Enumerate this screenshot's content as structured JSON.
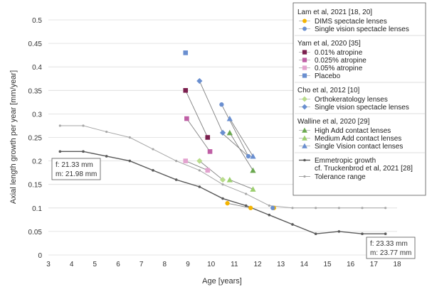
{
  "chart_data": {
    "type": "line",
    "xlabel": "Age [years]",
    "ylabel": "Axial length growth per year [mm/year]",
    "xlim": [
      3,
      18
    ],
    "ylim": [
      0,
      0.5
    ],
    "xticks": [
      3,
      4,
      5,
      6,
      7,
      8,
      9,
      10,
      11,
      12,
      13,
      14,
      15,
      16,
      17,
      18
    ],
    "yticks": [
      0,
      0.05,
      0.1,
      0.15,
      0.2,
      0.25,
      0.3,
      0.35,
      0.4,
      0.45,
      0.5
    ],
    "ytick_labels": [
      "0",
      "0.05",
      "0.1",
      "0.15",
      "0.2",
      "0.25",
      "0.3",
      "0.35",
      "0.4",
      "0.45",
      "0.5"
    ],
    "grid": "horizontal",
    "emmetropic": {
      "name": "Emmetropic growth",
      "name2": "cf. Truckenbrod et al, 2021 [28]",
      "color": "#595959",
      "x": [
        3.5,
        4.5,
        5.5,
        6.5,
        7.5,
        8.5,
        9.5,
        10.5,
        11.5,
        12.5,
        13.5,
        14.5,
        15.5,
        16.5,
        17.5
      ],
      "y": [
        0.22,
        0.22,
        0.21,
        0.2,
        0.18,
        0.16,
        0.145,
        0.12,
        0.105,
        0.085,
        0.065,
        0.045,
        0.05,
        0.045,
        0.045
      ]
    },
    "tolerance": {
      "name": "Tolerance range",
      "color": "#a6a6a6",
      "x": [
        3.5,
        4.5,
        5.5,
        6.5,
        7.5,
        8.5,
        9.5,
        10.5,
        11.5,
        12.5,
        13.5,
        14.5,
        15.5,
        16.5,
        17.5
      ],
      "y": [
        0.275,
        0.275,
        0.262,
        0.25,
        0.225,
        0.2,
        0.18,
        0.15,
        0.13,
        0.105,
        0.1,
        0.1,
        0.1,
        0.1,
        0.1
      ]
    },
    "studies": [
      {
        "title": "Lam et al, 2021 [18, 20]",
        "series": [
          {
            "name": "DIMS spectacle lenses",
            "marker": "circle",
            "color": "#f4b400",
            "x": [
              10.7,
              11.7,
              12.7
            ],
            "y": [
              0.11,
              0.1,
              0.1
            ]
          },
          {
            "name": "Single vision spectacle lenses",
            "marker": "circle",
            "color": "#6a8fd0",
            "x": [
              10.45,
              11.6,
              12.65
            ],
            "y": [
              0.32,
              0.21,
              0.1
            ]
          }
        ]
      },
      {
        "title": "Yam et al, 2020 [35]",
        "series": [
          {
            "name": "0.01% atropine",
            "marker": "square",
            "color": "#7b1f4e",
            "x": [
              8.9,
              9.85
            ],
            "y": [
              0.35,
              0.25
            ]
          },
          {
            "name": "0.025% atropine",
            "marker": "square",
            "color": "#bf5fa5",
            "x": [
              8.95,
              9.95
            ],
            "y": [
              0.29,
              0.22
            ]
          },
          {
            "name": "0.05% atropine",
            "marker": "square",
            "color": "#e3a3cf",
            "x": [
              8.9,
              9.85
            ],
            "y": [
              0.2,
              0.18
            ]
          },
          {
            "name": "Placebo",
            "marker": "square",
            "color": "#6a8fd0",
            "x": [
              8.9
            ],
            "y": [
              0.43
            ]
          }
        ]
      },
      {
        "title": "Cho et al, 2012 [10]",
        "series": [
          {
            "name": "Orthokeratology lenses",
            "marker": "diamond",
            "color": "#b9dc8c",
            "x": [
              9.5,
              10.5
            ],
            "y": [
              0.2,
              0.16
            ]
          },
          {
            "name": "Single vision spectacle lenses",
            "marker": "diamond",
            "color": "#6a8fd0",
            "x": [
              9.5,
              10.5
            ],
            "y": [
              0.37,
              0.26
            ]
          }
        ]
      },
      {
        "title": "Walline et al, 2020 [29]",
        "series": [
          {
            "name": "High Add contact lenses",
            "marker": "triangle",
            "color": "#6aa84f",
            "x": [
              10.8,
              11.8
            ],
            "y": [
              0.26,
              0.18
            ]
          },
          {
            "name": "Medium Add contact lenses",
            "marker": "triangle",
            "color": "#9ccf6e",
            "x": [
              10.8,
              11.8
            ],
            "y": [
              0.16,
              0.14
            ]
          },
          {
            "name": "Single Vision contact lenses",
            "marker": "triangle",
            "color": "#6a8fd0",
            "x": [
              10.8,
              11.8
            ],
            "y": [
              0.29,
              0.21
            ]
          }
        ]
      }
    ],
    "connectors": [
      {
        "x": [
          8.9,
          9.85
        ],
        "y": [
          0.35,
          0.25
        ]
      },
      {
        "x": [
          8.95,
          9.95
        ],
        "y": [
          0.29,
          0.22
        ]
      },
      {
        "x": [
          8.9,
          9.85
        ],
        "y": [
          0.2,
          0.18
        ]
      },
      {
        "x": [
          9.5,
          10.5
        ],
        "y": [
          0.37,
          0.26
        ]
      },
      {
        "x": [
          9.5,
          10.5
        ],
        "y": [
          0.2,
          0.16
        ]
      },
      {
        "x": [
          10.45,
          11.6
        ],
        "y": [
          0.32,
          0.21
        ]
      },
      {
        "x": [
          10.45,
          11.6,
          11.8
        ],
        "y": [
          0.26,
          0.21,
          0.21
        ]
      },
      {
        "x": [
          10.8,
          11.8
        ],
        "y": [
          0.29,
          0.21
        ]
      },
      {
        "x": [
          10.8,
          11.8
        ],
        "y": [
          0.26,
          0.18
        ]
      },
      {
        "x": [
          10.8,
          11.8
        ],
        "y": [
          0.16,
          0.14
        ]
      },
      {
        "x": [
          10.7,
          11.7
        ],
        "y": [
          0.11,
          0.1
        ]
      }
    ],
    "annotations": [
      {
        "line1": "f: 21.33 mm",
        "line2": "m: 21.98 mm",
        "anchor": "left"
      },
      {
        "line1": "f: 23.33 mm",
        "line2": "m: 23.77 mm",
        "anchor": "right"
      }
    ]
  }
}
